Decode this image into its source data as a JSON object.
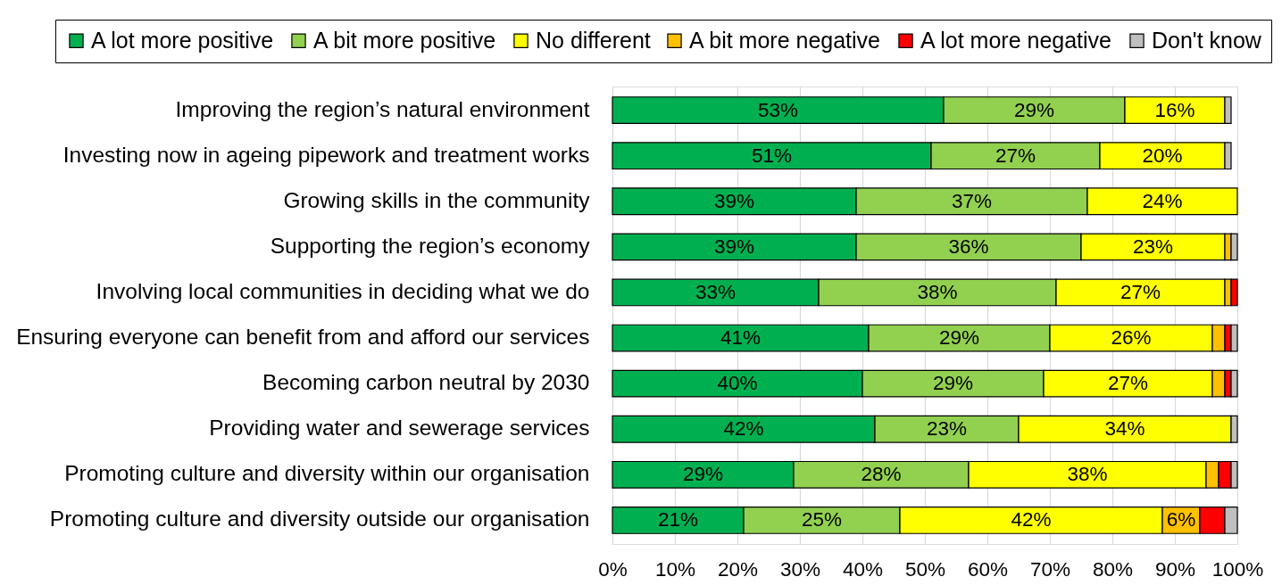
{
  "chart_data": {
    "type": "bar",
    "orientation": "horizontal",
    "stacked": true,
    "categories": [
      "Improving the region’s natural environment",
      "Investing now in ageing pipework and treatment works",
      "Growing skills in the community",
      "Supporting the region’s economy",
      "Involving local communities in deciding what we do",
      "Ensuring everyone can benefit from and afford our services",
      "Becoming carbon neutral by 2030",
      "Providing water and sewerage services",
      "Promoting culture and diversity within our organisation",
      "Promoting culture and diversity outside our organisation"
    ],
    "series": [
      {
        "name": "A lot more positive",
        "color": "#00b050",
        "values": [
          53,
          51,
          39,
          39,
          33,
          41,
          40,
          42,
          29,
          21
        ],
        "value_labels": [
          "53%",
          "51%",
          "39%",
          "39%",
          "33%",
          "41%",
          "40%",
          "42%",
          "29%",
          "21%"
        ]
      },
      {
        "name": "A bit more positive",
        "color": "#92d050",
        "values": [
          29,
          27,
          37,
          36,
          38,
          29,
          29,
          23,
          28,
          25
        ],
        "value_labels": [
          "29%",
          "27%",
          "37%",
          "36%",
          "38%",
          "29%",
          "29%",
          "23%",
          "28%",
          "25%"
        ]
      },
      {
        "name": "No different",
        "color": "#ffff00",
        "values": [
          16,
          20,
          24,
          23,
          27,
          26,
          27,
          34,
          38,
          42
        ],
        "value_labels": [
          "16%",
          "20%",
          "24%",
          "23%",
          "27%",
          "26%",
          "27%",
          "34%",
          "38%",
          "42%"
        ]
      },
      {
        "name": "A bit more negative",
        "color": "#ffc000",
        "values": [
          0,
          0,
          0,
          1,
          1,
          2,
          2,
          0,
          2,
          6
        ],
        "value_labels": [
          null,
          null,
          null,
          null,
          null,
          null,
          null,
          null,
          null,
          "6%"
        ]
      },
      {
        "name": "A lot more negative",
        "color": "#ff0000",
        "values": [
          0,
          0,
          0,
          0,
          1,
          1,
          1,
          0,
          2,
          4
        ]
      },
      {
        "name": "Don't know",
        "color": "#bfbfbf",
        "values": [
          1,
          1,
          0,
          1,
          0,
          1,
          1,
          1,
          1,
          2
        ]
      }
    ],
    "xlim": [
      0,
      100
    ],
    "xticks": [
      {
        "value": 0,
        "label": "0%"
      },
      {
        "value": 10,
        "label": "10%"
      },
      {
        "value": 20,
        "label": "20%"
      },
      {
        "value": 30,
        "label": "30%"
      },
      {
        "value": 40,
        "label": "40%"
      },
      {
        "value": 50,
        "label": "50%"
      },
      {
        "value": 60,
        "label": "60%"
      },
      {
        "value": 70,
        "label": "70%"
      },
      {
        "value": 80,
        "label": "80%"
      },
      {
        "value": 90,
        "label": "90%"
      },
      {
        "value": 100,
        "label": "100%"
      }
    ],
    "grid": "x",
    "legend": "top"
  }
}
